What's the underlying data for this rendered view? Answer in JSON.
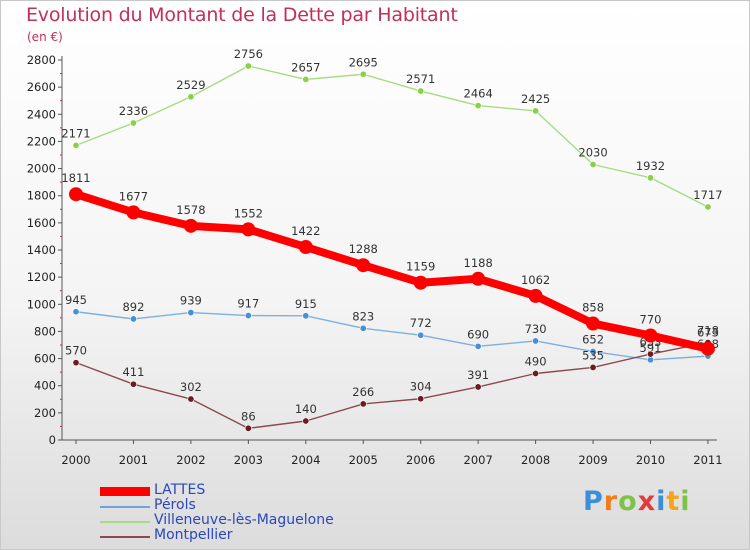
{
  "title": "Evolution du Montant de la Dette par Habitant",
  "unit": "(en €)",
  "chart_data": {
    "type": "line",
    "title": "Evolution du Montant de la Dette par Habitant",
    "ylabel": "(en €)",
    "xlabel": "",
    "ylim": [
      0,
      2800
    ],
    "yticks": [
      0,
      200,
      400,
      600,
      800,
      1000,
      1200,
      1400,
      1600,
      1800,
      2000,
      2200,
      2400,
      2600,
      2800
    ],
    "grid": false,
    "legend_position": "bottom-left",
    "x": [
      2000,
      2001,
      2002,
      2003,
      2004,
      2005,
      2006,
      2007,
      2008,
      2009,
      2010,
      2011
    ],
    "series": [
      {
        "name": "Villeneuve-lès-Maguelone",
        "color": "#8cd04a",
        "line_color": "#a6dc7e",
        "values": [
          2171,
          2336,
          2529,
          2756,
          2657,
          2695,
          2571,
          2464,
          2425,
          2030,
          1932,
          1717
        ],
        "labels": [
          "2171",
          "2336",
          "2529",
          "2756",
          "2657",
          "2695",
          "2571",
          "2464",
          "2425",
          "2030",
          "1932",
          "1717"
        ]
      },
      {
        "name": "Pérols",
        "color": "#4a90d0",
        "line_color": "#7fb0dd",
        "values": [
          945,
          892,
          939,
          917,
          915,
          823,
          772,
          690,
          730,
          652,
          591,
          618
        ],
        "labels": [
          "945",
          "892",
          "939",
          "917",
          "915",
          "823",
          "772",
          "690",
          "730",
          "652",
          "591",
          "618"
        ]
      },
      {
        "name": "Montpellier",
        "color": "#6b1c22",
        "line_color": "#8a4a4e",
        "values": [
          570,
          411,
          302,
          86,
          140,
          266,
          304,
          391,
          490,
          535,
          633,
          718
        ],
        "labels": [
          "570",
          "411",
          "302",
          "86",
          "140",
          "266",
          "304",
          "391",
          "490",
          "535",
          "633",
          "718"
        ]
      },
      {
        "name": "LATTES",
        "color": "#ff0000",
        "line_color": "#ff0000",
        "values": [
          1811,
          1677,
          1578,
          1552,
          1422,
          1288,
          1159,
          1188,
          1062,
          858,
          770,
          673
        ],
        "labels": [
          "1811",
          "1677",
          "1578",
          "1552",
          "1422",
          "1288",
          "1159",
          "1188",
          "1062",
          "858",
          "770",
          "673"
        ]
      }
    ]
  },
  "legend": [
    {
      "label": "LATTES",
      "color": "#ff0000"
    },
    {
      "label": "Pérols",
      "color": "#6fa3d6"
    },
    {
      "label": "Villeneuve-lès-Maguelone",
      "color": "#a6dc7e"
    },
    {
      "label": "Montpellier",
      "color": "#8a4a4e"
    }
  ],
  "logo": {
    "letters": [
      "P",
      "r",
      "o",
      "x",
      "i",
      "t",
      "i"
    ],
    "colors": [
      "#3b8fd8",
      "#f07c1a",
      "#7fc24a",
      "#e23b3b",
      "#3b8fd8",
      "#f0a81a",
      "#7fc24a"
    ]
  }
}
